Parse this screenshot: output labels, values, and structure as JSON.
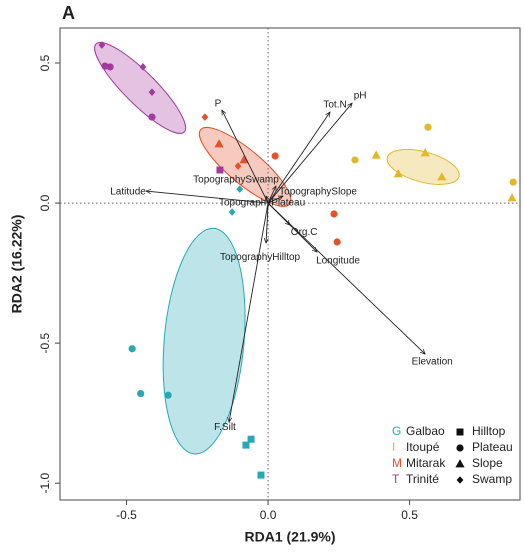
{
  "chart_data": {
    "type": "scatter",
    "panel_label": "A",
    "x_label": "RDA1 (21.9%)",
    "y_label": "RDA2 (16.22%)",
    "xlim": [
      -0.735,
      0.89
    ],
    "ylim": [
      -1.06,
      0.625
    ],
    "xticks": [
      -0.5,
      {
        "value": 0,
        "label": "0.0"
      },
      0.5
    ],
    "yticks": [
      {
        "value": -1,
        "label": "-1.0"
      },
      -0.5,
      {
        "value": 0,
        "label": "0.0"
      },
      0.5
    ],
    "shapes": [
      {
        "name": "Hilltop",
        "shape": "square"
      },
      {
        "name": "Plateau",
        "shape": "circle"
      },
      {
        "name": "Slope",
        "shape": "triangle"
      },
      {
        "name": "Swamp",
        "shape": "diamond"
      }
    ],
    "series": [
      {
        "name": "Galbao",
        "letter": "G",
        "color": "#26a9b5",
        "x": [
          -0.1,
          -0.127,
          -0.48,
          -0.45,
          -0.353,
          -0.06,
          -0.078,
          -0.025
        ],
        "y": [
          0.05,
          -0.032,
          -0.52,
          -0.68,
          -0.686,
          -0.843,
          -0.864,
          -0.971
        ],
        "shape": [
          "Swamp",
          "Swamp",
          "Plateau",
          "Plateau",
          "Plateau",
          "Hilltop",
          "Hilltop",
          "Hilltop"
        ],
        "ellipse": {
          "cx": -0.226,
          "cy": -0.493,
          "rx": 0.141,
          "ry": 0.404,
          "angle": 5
        }
      },
      {
        "name": "Itoupé",
        "letter": "I",
        "color": "#e2b72a",
        "x": [
          0.307,
          0.565,
          0.866,
          0.382,
          0.46,
          0.555,
          0.614,
          0.862
        ],
        "y": [
          0.154,
          0.271,
          0.075,
          0.171,
          0.104,
          0.179,
          0.093,
          0.018
        ],
        "shape": [
          "Plateau",
          "Plateau",
          "Plateau",
          "Slope",
          "Slope",
          "Slope",
          "Slope",
          "Slope"
        ],
        "ellipse": {
          "cx": 0.548,
          "cy": 0.129,
          "rx": 0.131,
          "ry": 0.054,
          "angle": 15
        }
      },
      {
        "name": "Mitarak",
        "letter": "M",
        "color": "#e4512a",
        "x": [
          0.025,
          0.233,
          0.244,
          -0.173,
          -0.085,
          -0.223,
          -0.106
        ],
        "y": [
          0.168,
          -0.039,
          -0.139,
          0.211,
          0.154,
          0.307,
          0.132
        ],
        "shape": [
          "Plateau",
          "Plateau",
          "Plateau",
          "Slope",
          "Slope",
          "Swamp",
          "Swamp"
        ],
        "ellipse": {
          "cx": -0.081,
          "cy": 0.129,
          "rx": 0.205,
          "ry": 0.06,
          "angle": 40
        }
      },
      {
        "name": "Trinité",
        "letter": "T",
        "color": "#a6399f",
        "x": [
          -0.576,
          -0.558,
          -0.41,
          -0.587,
          -0.442,
          -0.41,
          -0.17
        ],
        "y": [
          0.489,
          0.486,
          0.307,
          0.564,
          0.486,
          0.396,
          0.118
        ],
        "shape": [
          "Plateau",
          "Plateau",
          "Plateau",
          "Swamp",
          "Swamp",
          "Swamp",
          "Hilltop"
        ],
        "ellipse": {
          "cx": -0.452,
          "cy": 0.411,
          "rx": 0.22,
          "ry": 0.057,
          "angle": 45
        }
      }
    ],
    "vectors": [
      {
        "label": "P",
        "x": -0.163,
        "y": 0.332
      },
      {
        "label": "Tot.N",
        "x": 0.219,
        "y": 0.325
      },
      {
        "label": "pH",
        "x": 0.297,
        "y": 0.357
      },
      {
        "label": "Latitude",
        "x": -0.431,
        "y": 0.043
      },
      {
        "label": "TopographySwamp",
        "x": 0.028,
        "y": 0.061
      },
      {
        "label": "TopographySlope",
        "x": 0.053,
        "y": 0.025
      },
      {
        "label": "TopographyPlateau",
        "x": -0.007,
        "y": 0.025
      },
      {
        "label": "Org.C",
        "x": 0.078,
        "y": -0.079
      },
      {
        "label": "Longitude",
        "x": 0.173,
        "y": -0.175
      },
      {
        "label": "TopographyHilltop",
        "x": -0.007,
        "y": -0.143
      },
      {
        "label": "Elevation",
        "x": 0.555,
        "y": -0.539
      },
      {
        "label": "F.Silt",
        "x": -0.138,
        "y": -0.782
      }
    ]
  }
}
